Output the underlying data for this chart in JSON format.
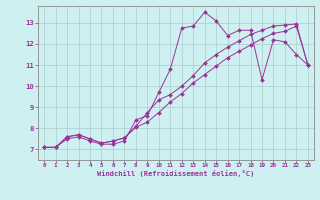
{
  "xlabel": "Windchill (Refroidissement éolien,°C)",
  "bg_color": "#cff0f0",
  "line_color": "#993399",
  "grid_color": "#aacccc",
  "spine_color": "#888888",
  "xlim": [
    -0.5,
    23.5
  ],
  "ylim": [
    6.5,
    13.8
  ],
  "xticks": [
    0,
    1,
    2,
    3,
    4,
    5,
    6,
    7,
    8,
    9,
    10,
    11,
    12,
    13,
    14,
    15,
    16,
    17,
    18,
    19,
    20,
    21,
    22,
    23
  ],
  "yticks": [
    7,
    8,
    9,
    10,
    11,
    12,
    13
  ],
  "line1_x": [
    0,
    1,
    2,
    3,
    4,
    5,
    6,
    7,
    8,
    9,
    10,
    11,
    12,
    13,
    14,
    15,
    16,
    17,
    18,
    19,
    20,
    21,
    22,
    23
  ],
  "line1_y": [
    7.1,
    7.1,
    7.5,
    7.6,
    7.4,
    7.25,
    7.25,
    7.4,
    8.4,
    8.6,
    9.7,
    10.8,
    12.75,
    12.85,
    13.5,
    13.1,
    12.4,
    12.65,
    12.65,
    10.3,
    12.2,
    12.1,
    11.5,
    11.0
  ],
  "line2_x": [
    0,
    1,
    2,
    3,
    4,
    5,
    6,
    7,
    8,
    9,
    10,
    11,
    12,
    13,
    14,
    15,
    16,
    17,
    18,
    19,
    20,
    21,
    22,
    23
  ],
  "line2_y": [
    7.1,
    7.1,
    7.6,
    7.7,
    7.5,
    7.3,
    7.4,
    7.55,
    8.1,
    8.75,
    9.35,
    9.6,
    10.0,
    10.5,
    11.1,
    11.5,
    11.85,
    12.15,
    12.45,
    12.65,
    12.85,
    12.9,
    12.95,
    11.0
  ],
  "line3_x": [
    0,
    1,
    2,
    3,
    4,
    5,
    6,
    7,
    8,
    9,
    10,
    11,
    12,
    13,
    14,
    15,
    16,
    17,
    18,
    19,
    20,
    21,
    22,
    23
  ],
  "line3_y": [
    7.1,
    7.1,
    7.6,
    7.7,
    7.5,
    7.3,
    7.4,
    7.55,
    8.05,
    8.3,
    8.75,
    9.25,
    9.65,
    10.15,
    10.55,
    10.95,
    11.35,
    11.65,
    11.95,
    12.25,
    12.5,
    12.6,
    12.85,
    11.0
  ]
}
